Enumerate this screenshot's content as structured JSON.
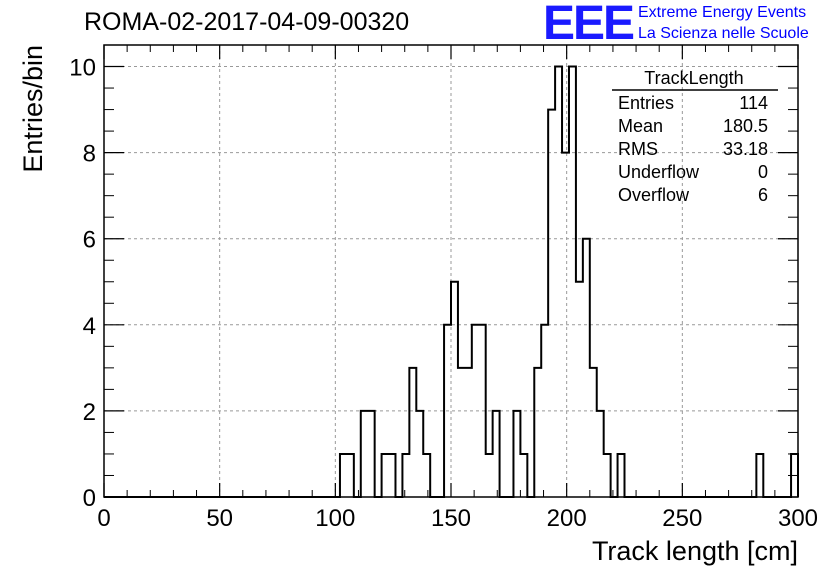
{
  "header": {
    "run_title": "ROMA-02-2017-04-09-00320",
    "logo_text": "EEE",
    "logo_line1": "Extreme Energy Events",
    "logo_line2": "La Scienza nelle Scuole"
  },
  "stats_box": {
    "title": "TrackLength",
    "rows": [
      {
        "label": "Entries",
        "value": "114"
      },
      {
        "label": "Mean",
        "value": "180.5"
      },
      {
        "label": "RMS",
        "value": "33.18"
      },
      {
        "label": "Underflow",
        "value": "0"
      },
      {
        "label": "Overflow",
        "value": "6"
      }
    ]
  },
  "chart_data": {
    "type": "histogram",
    "title": "ROMA-02-2017-04-09-00320",
    "xlabel": "Track length [cm]",
    "ylabel": "Entries/bin",
    "xlim": [
      0,
      300
    ],
    "ylim": [
      0,
      10.5
    ],
    "grid": true,
    "bin_width": 3,
    "x_ticks": [
      0,
      50,
      100,
      150,
      200,
      250,
      300
    ],
    "y_ticks": [
      0,
      2,
      4,
      6,
      8,
      10
    ],
    "bins": [
      {
        "x0": 102,
        "x1": 105,
        "count": 1
      },
      {
        "x0": 105,
        "x1": 108,
        "count": 1
      },
      {
        "x0": 111,
        "x1": 114,
        "count": 2
      },
      {
        "x0": 114,
        "x1": 117,
        "count": 2
      },
      {
        "x0": 120,
        "x1": 123,
        "count": 1
      },
      {
        "x0": 123,
        "x1": 126,
        "count": 1
      },
      {
        "x0": 129,
        "x1": 132,
        "count": 1
      },
      {
        "x0": 132,
        "x1": 135,
        "count": 3
      },
      {
        "x0": 135,
        "x1": 138,
        "count": 2
      },
      {
        "x0": 138,
        "x1": 141,
        "count": 1
      },
      {
        "x0": 147,
        "x1": 150,
        "count": 4
      },
      {
        "x0": 150,
        "x1": 153,
        "count": 5
      },
      {
        "x0": 153,
        "x1": 156,
        "count": 3
      },
      {
        "x0": 156,
        "x1": 159,
        "count": 3
      },
      {
        "x0": 159,
        "x1": 162,
        "count": 4
      },
      {
        "x0": 162,
        "x1": 165,
        "count": 4
      },
      {
        "x0": 165,
        "x1": 168,
        "count": 1
      },
      {
        "x0": 168,
        "x1": 171,
        "count": 2
      },
      {
        "x0": 177,
        "x1": 180,
        "count": 2
      },
      {
        "x0": 180,
        "x1": 183,
        "count": 1
      },
      {
        "x0": 186,
        "x1": 189,
        "count": 3
      },
      {
        "x0": 189,
        "x1": 192,
        "count": 4
      },
      {
        "x0": 192,
        "x1": 195,
        "count": 9
      },
      {
        "x0": 195,
        "x1": 198,
        "count": 10
      },
      {
        "x0": 198,
        "x1": 201,
        "count": 8
      },
      {
        "x0": 201,
        "x1": 204,
        "count": 10
      },
      {
        "x0": 204,
        "x1": 207,
        "count": 5
      },
      {
        "x0": 207,
        "x1": 210,
        "count": 6
      },
      {
        "x0": 210,
        "x1": 213,
        "count": 3
      },
      {
        "x0": 213,
        "x1": 216,
        "count": 2
      },
      {
        "x0": 216,
        "x1": 219,
        "count": 1
      },
      {
        "x0": 222,
        "x1": 225,
        "count": 1
      },
      {
        "x0": 282,
        "x1": 285,
        "count": 1
      },
      {
        "x0": 297,
        "x1": 300,
        "count": 1
      }
    ]
  }
}
